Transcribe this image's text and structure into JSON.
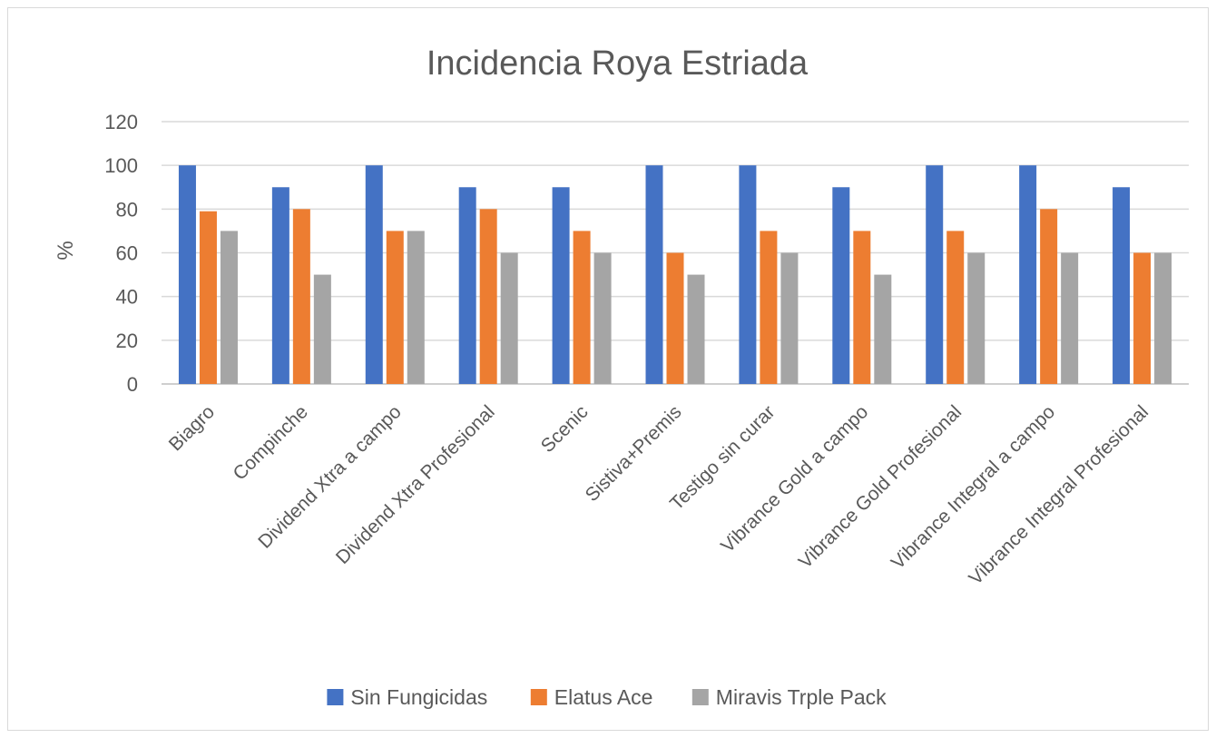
{
  "chart_data": {
    "type": "bar",
    "title": "Incidencia Roya Estriada",
    "xlabel": "",
    "ylabel": "%",
    "ylim": [
      0,
      120
    ],
    "yticks": [
      0,
      20,
      40,
      60,
      80,
      100,
      120
    ],
    "grid": true,
    "legend_position": "bottom",
    "categories": [
      "Biagro",
      "Compinche",
      "Dividend Xtra a campo",
      "Dividend Xtra Profesional",
      "Scenic",
      "Sistiva+Premis",
      "Testigo sin curar",
      "Vibrance Gold a campo",
      "Vibrance Gold Profesional",
      "Vibrance Integral a campo",
      "Vibrance Integral Profesional"
    ],
    "series": [
      {
        "name": "Sin Fungicidas",
        "color": "#4472C4",
        "values": [
          100,
          90,
          100,
          90,
          90,
          100,
          100,
          90,
          100,
          100,
          90
        ]
      },
      {
        "name": "Elatus Ace",
        "color": "#ED7D31",
        "values": [
          79,
          80,
          70,
          80,
          70,
          60,
          70,
          70,
          70,
          80,
          60
        ]
      },
      {
        "name": "Miravis Trple Pack",
        "color": "#A5A5A5",
        "values": [
          70,
          50,
          70,
          60,
          60,
          50,
          60,
          50,
          60,
          60,
          60
        ]
      }
    ]
  }
}
